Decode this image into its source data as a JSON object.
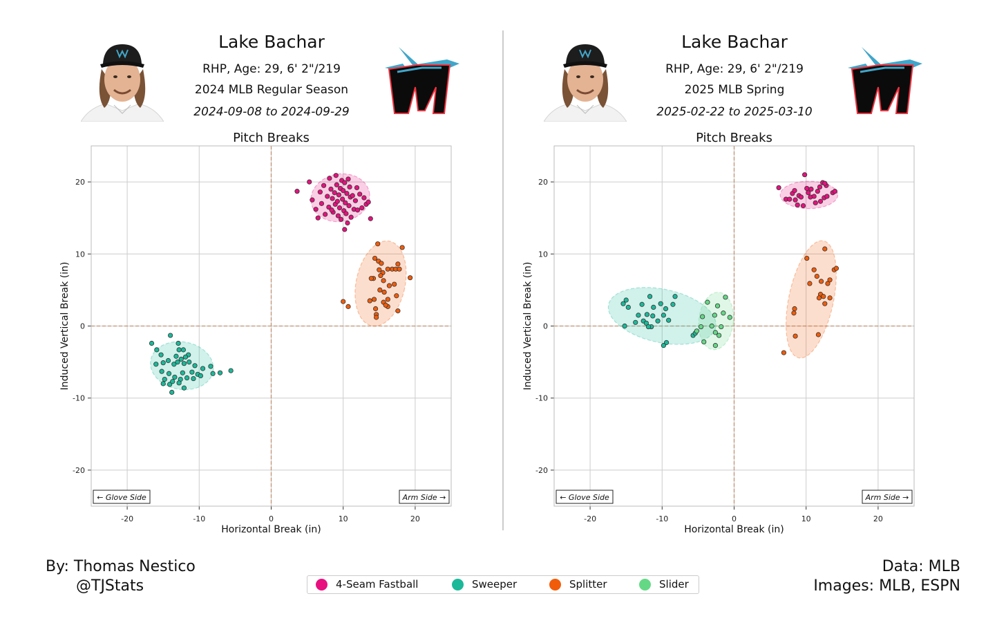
{
  "colors": {
    "four_seam": "#e8107f",
    "sweeper": "#1bb999",
    "splitter": "#f15c0a",
    "slider": "#65d886",
    "zero_line": "#c4906f",
    "grid": "#cccccc"
  },
  "legend": [
    {
      "label": "4-Seam Fastball",
      "color": "#e8107f"
    },
    {
      "label": "Sweeper",
      "color": "#1bb999"
    },
    {
      "label": "Splitter",
      "color": "#f15c0a"
    },
    {
      "label": "Slider",
      "color": "#65d886"
    }
  ],
  "footer": {
    "author": "By: Thomas Nestico",
    "handle": "@TJStats",
    "data_source": "Data: MLB",
    "image_source": "Images: MLB, ESPN"
  },
  "panels": [
    {
      "player_name": "Lake Bachar",
      "bio": "RHP, Age: 29, 6' 2\"/219",
      "season": "2024 MLB Regular Season",
      "date_range": "2024-09-08 to 2024-09-29"
    },
    {
      "player_name": "Lake Bachar",
      "bio": "RHP, Age: 29, 6' 2\"/219",
      "season": "2025 MLB Spring",
      "date_range": "2025-02-22 to 2025-03-10"
    }
  ],
  "chart_data": [
    {
      "type": "scatter",
      "title": "Pitch Breaks",
      "xlabel": "Horizontal Break (in)",
      "ylabel": "Induced Vertical Break (in)",
      "xlim": [
        -25,
        25
      ],
      "ylim": [
        -25,
        25
      ],
      "xticks": [
        -20,
        -10,
        0,
        10,
        20
      ],
      "yticks": [
        -20,
        -10,
        0,
        10,
        20
      ],
      "grid": true,
      "annotations": {
        "left": "← Glove Side",
        "right": "Arm Side →"
      },
      "series": [
        {
          "name": "4-Seam Fastball",
          "color": "#e8107f",
          "ellipse": {
            "cx": 9.6,
            "cy": 17.8,
            "rx": 4.1,
            "ry": 3.3,
            "angle": -10
          },
          "points": [
            [
              3.6,
              18.7
            ],
            [
              5.3,
              20.0
            ],
            [
              5.7,
              17.5
            ],
            [
              6.2,
              16.2
            ],
            [
              6.5,
              15.0
            ],
            [
              6.8,
              18.6
            ],
            [
              7.0,
              17.0
            ],
            [
              7.3,
              19.5
            ],
            [
              7.5,
              15.5
            ],
            [
              7.8,
              18.0
            ],
            [
              8.0,
              16.5
            ],
            [
              8.1,
              20.5
            ],
            [
              8.3,
              19.0
            ],
            [
              8.5,
              17.7
            ],
            [
              8.6,
              15.8
            ],
            [
              8.8,
              18.5
            ],
            [
              8.9,
              16.9
            ],
            [
              9.0,
              20.9
            ],
            [
              9.1,
              19.6
            ],
            [
              9.2,
              17.3
            ],
            [
              9.3,
              15.3
            ],
            [
              9.4,
              18.2
            ],
            [
              9.5,
              16.4
            ],
            [
              9.6,
              19.1
            ],
            [
              9.7,
              14.8
            ],
            [
              9.8,
              20.2
            ],
            [
              9.9,
              17.6
            ],
            [
              10.0,
              18.8
            ],
            [
              10.1,
              16.0
            ],
            [
              10.2,
              19.9
            ],
            [
              10.3,
              17.1
            ],
            [
              10.4,
              15.6
            ],
            [
              10.5,
              18.4
            ],
            [
              10.6,
              14.3
            ],
            [
              10.7,
              20.4
            ],
            [
              10.8,
              16.7
            ],
            [
              10.9,
              19.3
            ],
            [
              11.0,
              17.9
            ],
            [
              11.1,
              15.1
            ],
            [
              11.3,
              18.1
            ],
            [
              11.5,
              16.2
            ],
            [
              11.7,
              17.4
            ],
            [
              12.0,
              16.1
            ],
            [
              12.3,
              18.3
            ],
            [
              12.6,
              16.4
            ],
            [
              12.9,
              17.8
            ],
            [
              13.2,
              16.9
            ],
            [
              13.5,
              17.2
            ],
            [
              13.8,
              14.9
            ],
            [
              10.2,
              13.4
            ],
            [
              8.4,
              16.1
            ],
            [
              11.9,
              19.2
            ]
          ]
        },
        {
          "name": "Splitter",
          "color": "#f15c0a",
          "ellipse": {
            "cx": 15.2,
            "cy": 5.9,
            "rx": 3.4,
            "ry": 6.0,
            "angle": 12
          },
          "points": [
            [
              14.8,
              11.4
            ],
            [
              18.2,
              10.9
            ],
            [
              17.6,
              8.6
            ],
            [
              14.4,
              9.4
            ],
            [
              14.9,
              9.0
            ],
            [
              15.3,
              8.7
            ],
            [
              15.0,
              7.8
            ],
            [
              16.8,
              7.9
            ],
            [
              17.3,
              7.9
            ],
            [
              17.8,
              7.9
            ],
            [
              16.2,
              7.9
            ],
            [
              19.3,
              6.7
            ],
            [
              15.5,
              7.4
            ],
            [
              15.2,
              7.0
            ],
            [
              14.2,
              6.6
            ],
            [
              13.9,
              6.6
            ],
            [
              15.6,
              6.3
            ],
            [
              16.4,
              5.6
            ],
            [
              17.1,
              5.8
            ],
            [
              15.1,
              5.0
            ],
            [
              15.7,
              4.7
            ],
            [
              17.4,
              4.2
            ],
            [
              16.2,
              3.7
            ],
            [
              14.3,
              3.7
            ],
            [
              13.7,
              3.5
            ],
            [
              10.0,
              3.4
            ],
            [
              15.6,
              3.3
            ],
            [
              10.7,
              2.7
            ],
            [
              14.5,
              2.4
            ],
            [
              16.2,
              2.7
            ],
            [
              17.6,
              2.1
            ],
            [
              14.6,
              1.6
            ],
            [
              14.6,
              1.2
            ],
            [
              15.9,
              2.9
            ]
          ]
        },
        {
          "name": "Sweeper",
          "color": "#1bb999",
          "ellipse": {
            "cx": -12.4,
            "cy": -5.5,
            "rx": 4.4,
            "ry": 3.3,
            "angle": 10
          },
          "points": [
            [
              -16.6,
              -2.4
            ],
            [
              -14.0,
              -1.3
            ],
            [
              -12.9,
              -2.4
            ],
            [
              -15.9,
              -3.3
            ],
            [
              -15.3,
              -4.0
            ],
            [
              -12.8,
              -3.3
            ],
            [
              -12.2,
              -3.3
            ],
            [
              -11.5,
              -4.0
            ],
            [
              -12.5,
              -4.6
            ],
            [
              -11.9,
              -4.3
            ],
            [
              -13.2,
              -4.2
            ],
            [
              -14.3,
              -4.8
            ],
            [
              -16.0,
              -5.3
            ],
            [
              -15.0,
              -5.1
            ],
            [
              -13.5,
              -5.3
            ],
            [
              -13.0,
              -5.0
            ],
            [
              -12.1,
              -5.2
            ],
            [
              -11.4,
              -5.0
            ],
            [
              -10.6,
              -5.5
            ],
            [
              -9.5,
              -5.9
            ],
            [
              -8.4,
              -5.6
            ],
            [
              -7.1,
              -6.5
            ],
            [
              -5.6,
              -6.2
            ],
            [
              -8.1,
              -6.6
            ],
            [
              -10.2,
              -6.7
            ],
            [
              -11.0,
              -6.4
            ],
            [
              -10.8,
              -7.3
            ],
            [
              -11.7,
              -7.2
            ],
            [
              -12.3,
              -6.5
            ],
            [
              -12.6,
              -7.4
            ],
            [
              -13.4,
              -7.1
            ],
            [
              -14.2,
              -6.6
            ],
            [
              -15.2,
              -6.3
            ],
            [
              -14.8,
              -7.4
            ],
            [
              -14.1,
              -8.1
            ],
            [
              -13.7,
              -7.7
            ],
            [
              -12.8,
              -7.9
            ],
            [
              -12.1,
              -8.6
            ],
            [
              -13.8,
              -9.2
            ],
            [
              -15.0,
              -8.0
            ],
            [
              -9.8,
              -6.9
            ]
          ]
        }
      ]
    },
    {
      "type": "scatter",
      "title": "Pitch Breaks",
      "xlabel": "Horizontal Break (in)",
      "ylabel": "Induced Vertical Break (in)",
      "xlim": [
        -25,
        25
      ],
      "ylim": [
        -25,
        25
      ],
      "xticks": [
        -20,
        -10,
        0,
        10,
        20
      ],
      "yticks": [
        -20,
        -10,
        0,
        10,
        20
      ],
      "grid": true,
      "annotations": {
        "left": "← Glove Side",
        "right": "Arm Side →"
      },
      "series": [
        {
          "name": "4-Seam Fastball",
          "color": "#e8107f",
          "ellipse": {
            "cx": 10.4,
            "cy": 18.2,
            "rx": 4.0,
            "ry": 1.9,
            "angle": 0
          },
          "points": [
            [
              6.2,
              19.2
            ],
            [
              7.2,
              17.6
            ],
            [
              7.7,
              17.6
            ],
            [
              8.1,
              18.4
            ],
            [
              8.4,
              18.8
            ],
            [
              8.5,
              17.5
            ],
            [
              8.8,
              16.8
            ],
            [
              9.0,
              18.1
            ],
            [
              9.3,
              17.9
            ],
            [
              9.6,
              16.7
            ],
            [
              9.8,
              21.0
            ],
            [
              10.1,
              19.1
            ],
            [
              10.3,
              18.5
            ],
            [
              10.6,
              17.9
            ],
            [
              10.7,
              19.0
            ],
            [
              11.1,
              18.0
            ],
            [
              11.3,
              17.1
            ],
            [
              11.6,
              18.7
            ],
            [
              11.9,
              19.3
            ],
            [
              12.0,
              17.3
            ],
            [
              12.3,
              19.9
            ],
            [
              12.5,
              17.8
            ],
            [
              12.8,
              19.5
            ],
            [
              12.9,
              18.0
            ],
            [
              13.7,
              18.5
            ],
            [
              14.0,
              18.7
            ],
            [
              12.6,
              19.8
            ]
          ]
        },
        {
          "name": "Splitter",
          "color": "#f15c0a",
          "ellipse": {
            "cx": 10.7,
            "cy": 3.7,
            "rx": 3.1,
            "ry": 8.3,
            "angle": 12
          },
          "points": [
            [
              10.1,
              9.4
            ],
            [
              11.1,
              7.8
            ],
            [
              13.9,
              7.8
            ],
            [
              11.5,
              6.9
            ],
            [
              10.5,
              5.9
            ],
            [
              13.3,
              6.4
            ],
            [
              12.1,
              6.2
            ],
            [
              13.0,
              5.9
            ],
            [
              12.0,
              4.4
            ],
            [
              12.4,
              4.1
            ],
            [
              11.8,
              3.9
            ],
            [
              13.3,
              3.9
            ],
            [
              12.6,
              3.1
            ],
            [
              8.4,
              2.4
            ],
            [
              8.3,
              1.8
            ],
            [
              11.7,
              -1.2
            ],
            [
              8.5,
              -1.4
            ],
            [
              6.9,
              -3.7
            ],
            [
              12.6,
              10.7
            ],
            [
              14.2,
              8.0
            ]
          ]
        },
        {
          "name": "Sweeper",
          "color": "#1bb999",
          "ellipse": {
            "cx": -10.0,
            "cy": 1.4,
            "rx": 7.6,
            "ry": 3.7,
            "angle": 12
          },
          "points": [
            [
              -15.4,
              3.1
            ],
            [
              -15.0,
              3.6
            ],
            [
              -14.7,
              2.6
            ],
            [
              -11.7,
              4.1
            ],
            [
              -12.8,
              3.0
            ],
            [
              -11.2,
              2.6
            ],
            [
              -10.2,
              3.1
            ],
            [
              -9.5,
              2.4
            ],
            [
              -9.8,
              1.5
            ],
            [
              -11.3,
              1.4
            ],
            [
              -12.1,
              1.6
            ],
            [
              -13.3,
              1.5
            ],
            [
              -12.6,
              0.7
            ],
            [
              -13.7,
              0.5
            ],
            [
              -12.2,
              0.4
            ],
            [
              -11.5,
              -0.1
            ],
            [
              -11.9,
              -0.1
            ],
            [
              -10.6,
              0.7
            ],
            [
              -9.1,
              0.8
            ],
            [
              -8.5,
              3.0
            ],
            [
              -8.2,
              4.1
            ],
            [
              -15.2,
              0.0
            ],
            [
              -9.4,
              -2.3
            ],
            [
              -9.8,
              -2.7
            ],
            [
              -5.7,
              -1.3
            ],
            [
              -5.4,
              -1.0
            ]
          ]
        },
        {
          "name": "Slider",
          "color": "#65d886",
          "ellipse": {
            "cx": -2.5,
            "cy": 0.7,
            "rx": 2.4,
            "ry": 4.0,
            "angle": 6
          },
          "points": [
            [
              -1.2,
              4.0
            ],
            [
              -3.7,
              3.3
            ],
            [
              -2.3,
              2.8
            ],
            [
              -1.5,
              1.8
            ],
            [
              -4.4,
              1.3
            ],
            [
              -2.7,
              1.5
            ],
            [
              -0.6,
              1.2
            ],
            [
              -3.1,
              0.0
            ],
            [
              -4.6,
              -0.1
            ],
            [
              -1.8,
              -0.1
            ],
            [
              -2.6,
              -0.9
            ],
            [
              -5.2,
              -0.7
            ],
            [
              -2.1,
              -1.3
            ],
            [
              -4.2,
              -2.2
            ],
            [
              -2.6,
              -2.7
            ]
          ]
        }
      ]
    }
  ]
}
